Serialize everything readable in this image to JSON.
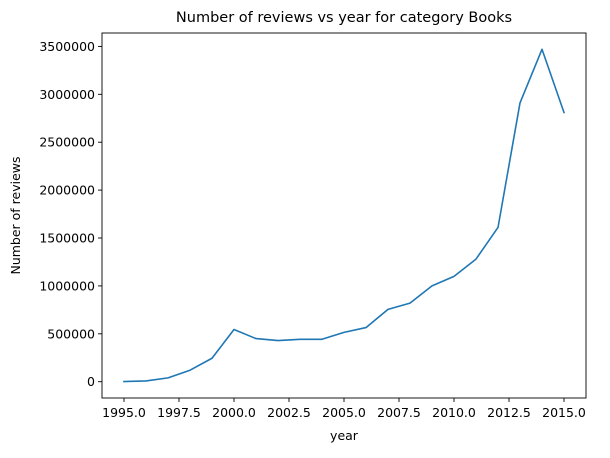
{
  "chart_data": {
    "type": "line",
    "title": "Number of reviews vs year for category Books",
    "xlabel": "year",
    "ylabel": "Number of reviews",
    "xlim": [
      1994.0,
      2016.0
    ],
    "ylim": [
      -170000,
      3640000
    ],
    "xticks": [
      1995.0,
      1997.5,
      2000.0,
      2002.5,
      2005.0,
      2007.5,
      2010.0,
      2012.5,
      2015.0
    ],
    "xtick_labels": [
      "1995.0",
      "1997.5",
      "2000.0",
      "2002.5",
      "2005.0",
      "2007.5",
      "2010.0",
      "2012.5",
      "2015.0"
    ],
    "yticks": [
      0,
      500000,
      1000000,
      1500000,
      2000000,
      2500000,
      3000000,
      3500000
    ],
    "ytick_labels": [
      "0",
      "500000",
      "1000000",
      "1500000",
      "2000000",
      "2500000",
      "3000000",
      "3500000"
    ],
    "grid": false,
    "series": [
      {
        "color": "#1f77b4",
        "x": [
          1995,
          1996,
          1997,
          1998,
          1999,
          2000,
          2001,
          2002,
          2003,
          2004,
          2005,
          2006,
          2007,
          2008,
          2009,
          2010,
          2011,
          2012,
          2013,
          2014,
          2015
        ],
        "y": [
          2000,
          8000,
          40000,
          120000,
          245000,
          545000,
          450000,
          430000,
          443000,
          443000,
          515000,
          565000,
          755000,
          820000,
          1000000,
          1100000,
          1280000,
          1610000,
          2910000,
          3470000,
          2810000
        ]
      }
    ]
  }
}
